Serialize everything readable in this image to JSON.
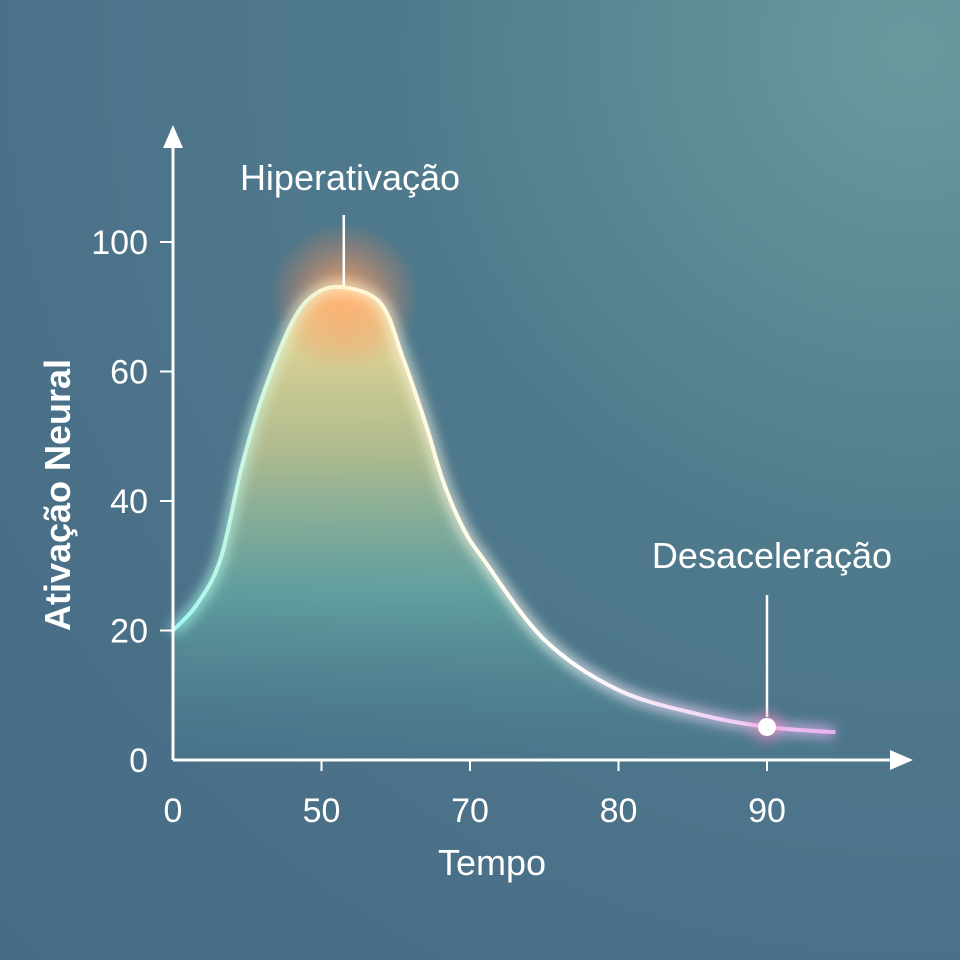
{
  "chart_data": {
    "type": "line",
    "title": "",
    "xlabel": "Tempo",
    "ylabel": "Ativação Neural",
    "x_ticks": [
      0,
      50,
      70,
      80,
      90
    ],
    "y_ticks": [
      0,
      20,
      40,
      60,
      100
    ],
    "grid": false,
    "series": [
      {
        "name": "Ativação Neural",
        "x": [
          0,
          8,
          16,
          23,
          30,
          40,
          48,
          53,
          58,
          61,
          64,
          66.4,
          69,
          70.9,
          75,
          80,
          85.5,
          90,
          94.5
        ],
        "y": [
          20,
          24,
          31,
          45,
          56,
          75,
          84,
          86,
          81,
          64,
          52,
          43,
          36,
          31,
          18.6,
          10.8,
          7,
          5.1,
          4.3
        ]
      }
    ],
    "annotations": [
      {
        "text": "Hiperativação",
        "x": 53,
        "y": 86
      },
      {
        "text": "Desaceleração",
        "x": 90,
        "y": 5.1
      }
    ],
    "colors": {
      "start": "#7ff0e8",
      "peak": "#ffb070",
      "end": "#e8a8f0",
      "line": "#ffffff"
    }
  }
}
